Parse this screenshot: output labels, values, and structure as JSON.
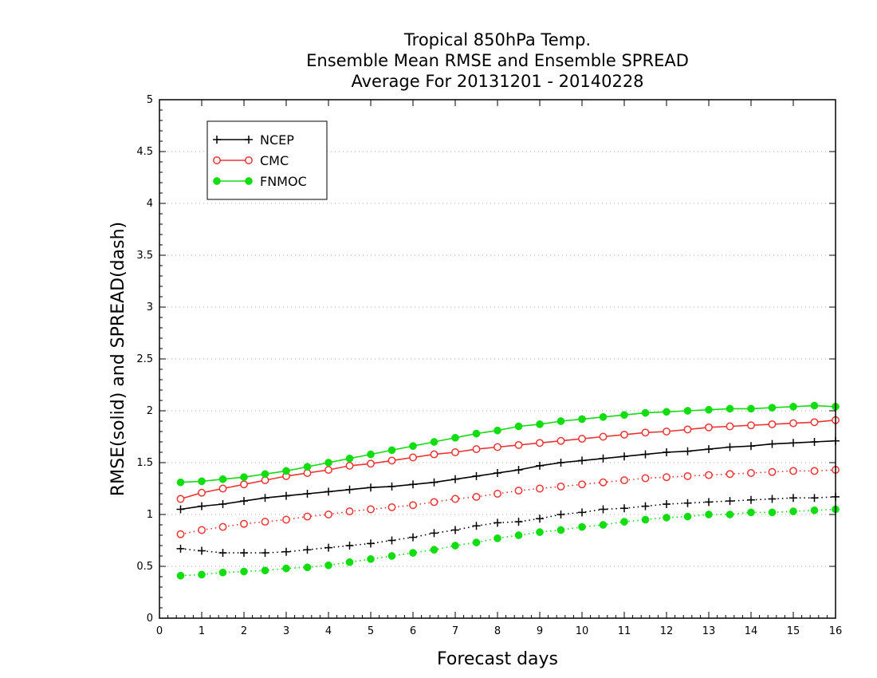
{
  "chart_data": {
    "type": "line",
    "title_lines": [
      "Tropical 850hPa Temp.",
      "Ensemble Mean RMSE and Ensemble SPREAD",
      "Average For 20131201 - 20140228"
    ],
    "xlabel": "Forecast days",
    "ylabel": "RMSE(solid) and SPREAD(dash)",
    "xlim": [
      0,
      16
    ],
    "ylim": [
      0,
      5
    ],
    "x_ticks": [
      "0",
      "1",
      "2",
      "3",
      "4",
      "5",
      "6",
      "7",
      "8",
      "9",
      "10",
      "11",
      "12",
      "13",
      "14",
      "15",
      "16"
    ],
    "y_ticks": [
      "0",
      "0.5",
      "1",
      "1.5",
      "2",
      "2.5",
      "3",
      "3.5",
      "4",
      "4.5",
      "5"
    ],
    "y_grid": true,
    "legend_position": "top-left",
    "x": [
      0.5,
      1,
      1.5,
      2,
      2.5,
      3,
      3.5,
      4,
      4.5,
      5,
      5.5,
      6,
      6.5,
      7,
      7.5,
      8,
      8.5,
      9,
      9.5,
      10,
      10.5,
      11,
      11.5,
      12,
      12.5,
      13,
      13.5,
      14,
      14.5,
      15,
      15.5,
      16
    ],
    "series": [
      {
        "name": "NCEP",
        "color": "#000000",
        "marker": "plus",
        "rmse": [
          1.05,
          1.08,
          1.1,
          1.13,
          1.16,
          1.18,
          1.2,
          1.22,
          1.24,
          1.26,
          1.27,
          1.29,
          1.31,
          1.34,
          1.37,
          1.4,
          1.43,
          1.47,
          1.5,
          1.52,
          1.54,
          1.56,
          1.58,
          1.6,
          1.61,
          1.63,
          1.65,
          1.66,
          1.68,
          1.69,
          1.7,
          1.71
        ],
        "spread": [
          0.67,
          0.65,
          0.63,
          0.63,
          0.63,
          0.64,
          0.66,
          0.68,
          0.7,
          0.72,
          0.75,
          0.78,
          0.82,
          0.85,
          0.89,
          0.92,
          0.93,
          0.96,
          1.0,
          1.02,
          1.05,
          1.06,
          1.08,
          1.1,
          1.11,
          1.12,
          1.13,
          1.14,
          1.15,
          1.16,
          1.16,
          1.17
        ]
      },
      {
        "name": "CMC",
        "color": "#ee3333",
        "marker": "open-circle",
        "rmse": [
          1.15,
          1.21,
          1.25,
          1.29,
          1.33,
          1.37,
          1.4,
          1.43,
          1.47,
          1.49,
          1.52,
          1.55,
          1.58,
          1.6,
          1.63,
          1.65,
          1.67,
          1.69,
          1.71,
          1.73,
          1.75,
          1.77,
          1.79,
          1.8,
          1.82,
          1.84,
          1.85,
          1.86,
          1.87,
          1.88,
          1.89,
          1.91
        ],
        "spread": [
          0.81,
          0.85,
          0.88,
          0.91,
          0.93,
          0.95,
          0.98,
          1.0,
          1.03,
          1.05,
          1.07,
          1.09,
          1.12,
          1.15,
          1.17,
          1.2,
          1.23,
          1.25,
          1.27,
          1.29,
          1.31,
          1.33,
          1.35,
          1.36,
          1.37,
          1.38,
          1.39,
          1.4,
          1.41,
          1.42,
          1.42,
          1.43
        ]
      },
      {
        "name": "FNMOC",
        "color": "#11dd11",
        "marker": "filled-circle",
        "rmse": [
          1.31,
          1.32,
          1.34,
          1.36,
          1.39,
          1.42,
          1.46,
          1.5,
          1.54,
          1.58,
          1.62,
          1.66,
          1.7,
          1.74,
          1.78,
          1.81,
          1.85,
          1.87,
          1.9,
          1.92,
          1.94,
          1.96,
          1.98,
          1.99,
          2.0,
          2.01,
          2.02,
          2.02,
          2.03,
          2.04,
          2.05,
          2.04
        ],
        "spread": [
          0.41,
          0.42,
          0.44,
          0.45,
          0.46,
          0.48,
          0.49,
          0.51,
          0.54,
          0.57,
          0.6,
          0.63,
          0.66,
          0.7,
          0.73,
          0.77,
          0.8,
          0.83,
          0.85,
          0.88,
          0.9,
          0.93,
          0.95,
          0.97,
          0.98,
          1.0,
          1.0,
          1.02,
          1.02,
          1.03,
          1.04,
          1.05
        ]
      }
    ]
  }
}
